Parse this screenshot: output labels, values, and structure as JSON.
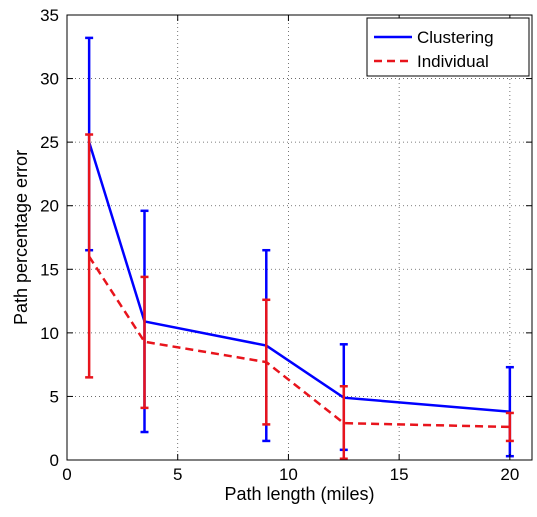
{
  "chart_data": {
    "type": "line",
    "xlabel": "Path length (miles)",
    "ylabel": "Path percentage error",
    "xlim": [
      0,
      21
    ],
    "ylim": [
      0,
      35
    ],
    "xticks": [
      0,
      5,
      10,
      15,
      20
    ],
    "yticks": [
      0,
      5,
      10,
      15,
      20,
      25,
      30,
      35
    ],
    "grid": true,
    "legend_position": "top-right",
    "series": [
      {
        "name": "Clustering",
        "color": "#0000ff",
        "line_style": "solid",
        "x": [
          1,
          3.5,
          9,
          12.5,
          20
        ],
        "y": [
          25,
          10.9,
          9,
          4.9,
          3.8
        ],
        "error_low": [
          16.5,
          2.2,
          1.5,
          0.8,
          0.3
        ],
        "error_high": [
          33.2,
          19.6,
          16.5,
          9.1,
          7.3
        ]
      },
      {
        "name": "Individual",
        "color": "#e8141c",
        "line_style": "dashed",
        "x": [
          1,
          3.5,
          9,
          12.5,
          20
        ],
        "y": [
          16,
          9.3,
          7.7,
          2.9,
          2.6
        ],
        "error_low": [
          6.5,
          4.1,
          2.8,
          0.1,
          1.5
        ],
        "error_high": [
          25.6,
          14.4,
          12.6,
          5.8,
          3.7
        ]
      }
    ]
  }
}
